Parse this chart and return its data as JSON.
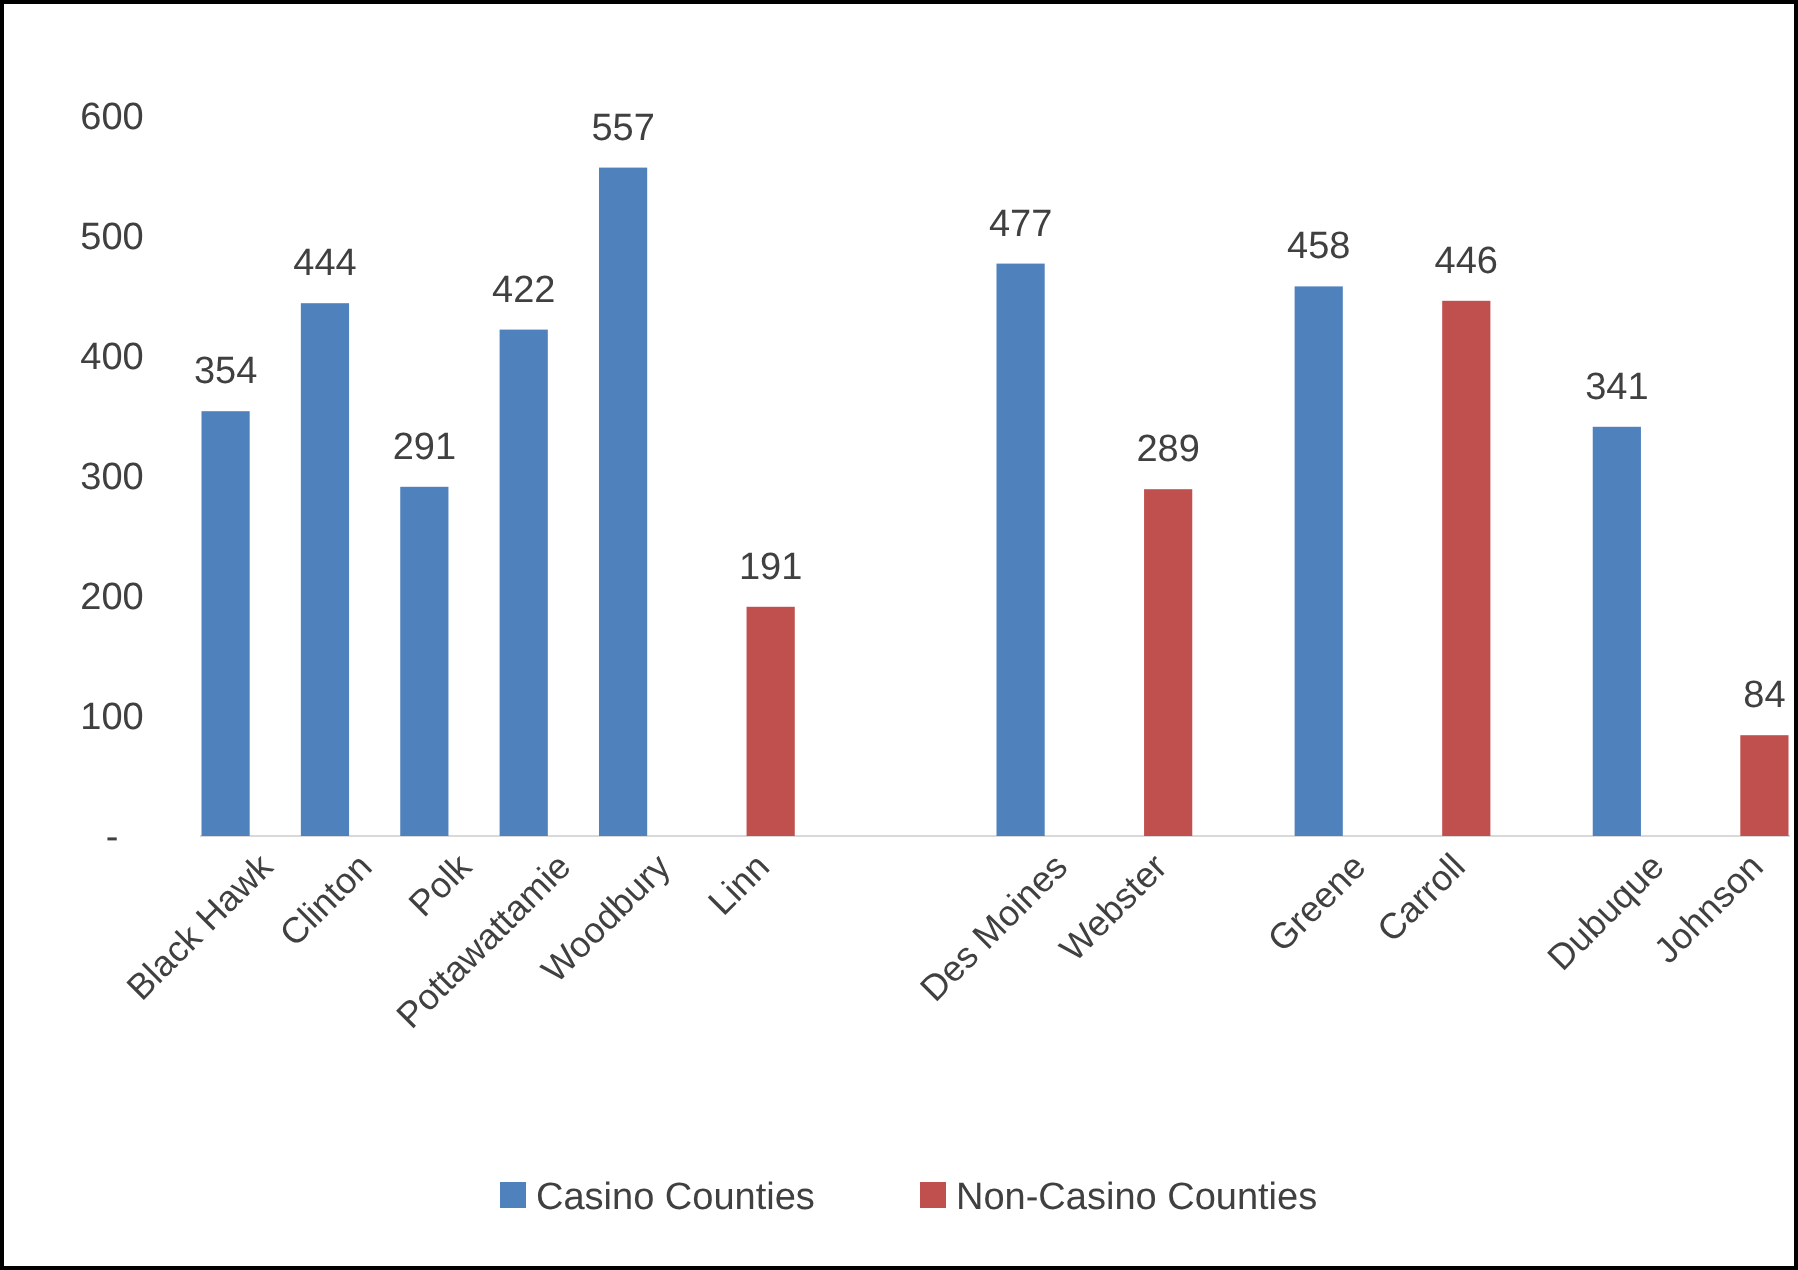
{
  "chart_data": {
    "type": "bar",
    "categories": [
      "Black Hawk",
      "Clinton",
      "Polk",
      "Pottawattamie",
      "Woodbury",
      "Linn",
      null,
      null,
      "Des Moines",
      "Webster",
      null,
      "Greene",
      "Carroll",
      null,
      "Dubuque",
      "Johnson"
    ],
    "series": [
      {
        "name": "Casino Counties",
        "color": "#4f81bd",
        "values": [
          354,
          444,
          291,
          422,
          557,
          null,
          null,
          null,
          477,
          null,
          null,
          458,
          null,
          null,
          341,
          null
        ]
      },
      {
        "name": "Non-Casino Counties",
        "color": "#c0504d",
        "values": [
          null,
          null,
          null,
          null,
          null,
          191,
          null,
          null,
          null,
          289,
          null,
          null,
          446,
          null,
          null,
          84
        ]
      }
    ],
    "ylim": [
      0,
      600
    ],
    "yticks": [
      {
        "value": 0,
        "label": "-"
      },
      100,
      200,
      300,
      400,
      500,
      600
    ],
    "grid": false,
    "legend": "bottom",
    "data_labels": true
  }
}
